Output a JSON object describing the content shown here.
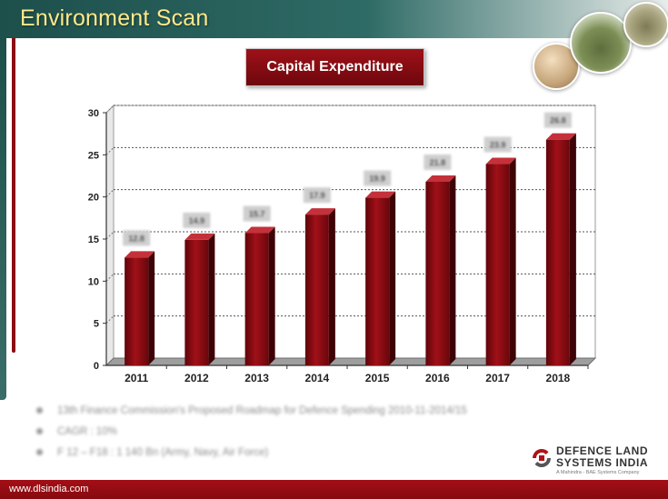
{
  "header": {
    "title": "Environment Scan"
  },
  "badge": {
    "label": "Capital Expenditure"
  },
  "chart_data": {
    "type": "bar",
    "title": "Capital Expenditure",
    "categories": [
      "2011",
      "2012",
      "2013",
      "2014",
      "2015",
      "2016",
      "2017",
      "2018"
    ],
    "values": [
      12.8,
      14.9,
      15.7,
      17.9,
      19.9,
      21.8,
      23.9,
      26.8
    ],
    "ylim": [
      0,
      30
    ],
    "yticks": [
      0,
      5,
      10,
      15,
      20,
      25,
      30
    ],
    "grid": true,
    "bar_color": "#8b0c12",
    "data_labels": "blurred"
  },
  "bullets": [
    {
      "text": "13th Finance Commission's Proposed Roadmap for Defence Spending 2010-11-2014/15"
    },
    {
      "text": "CAGR : 10%"
    },
    {
      "text": "F 12 – F18 : 1 140 Bn (Army, Navy, Air Force)"
    }
  ],
  "logo": {
    "name": "DEFENCE LAND\nSYSTEMS INDIA",
    "tagline": "A Mahindra - BAE Systems Company"
  },
  "footer": {
    "url": "www.dlsindia.com"
  },
  "colors": {
    "header": "#1d4f4b",
    "title_text": "#ffe98a",
    "accent_red": "#8b0c12"
  }
}
